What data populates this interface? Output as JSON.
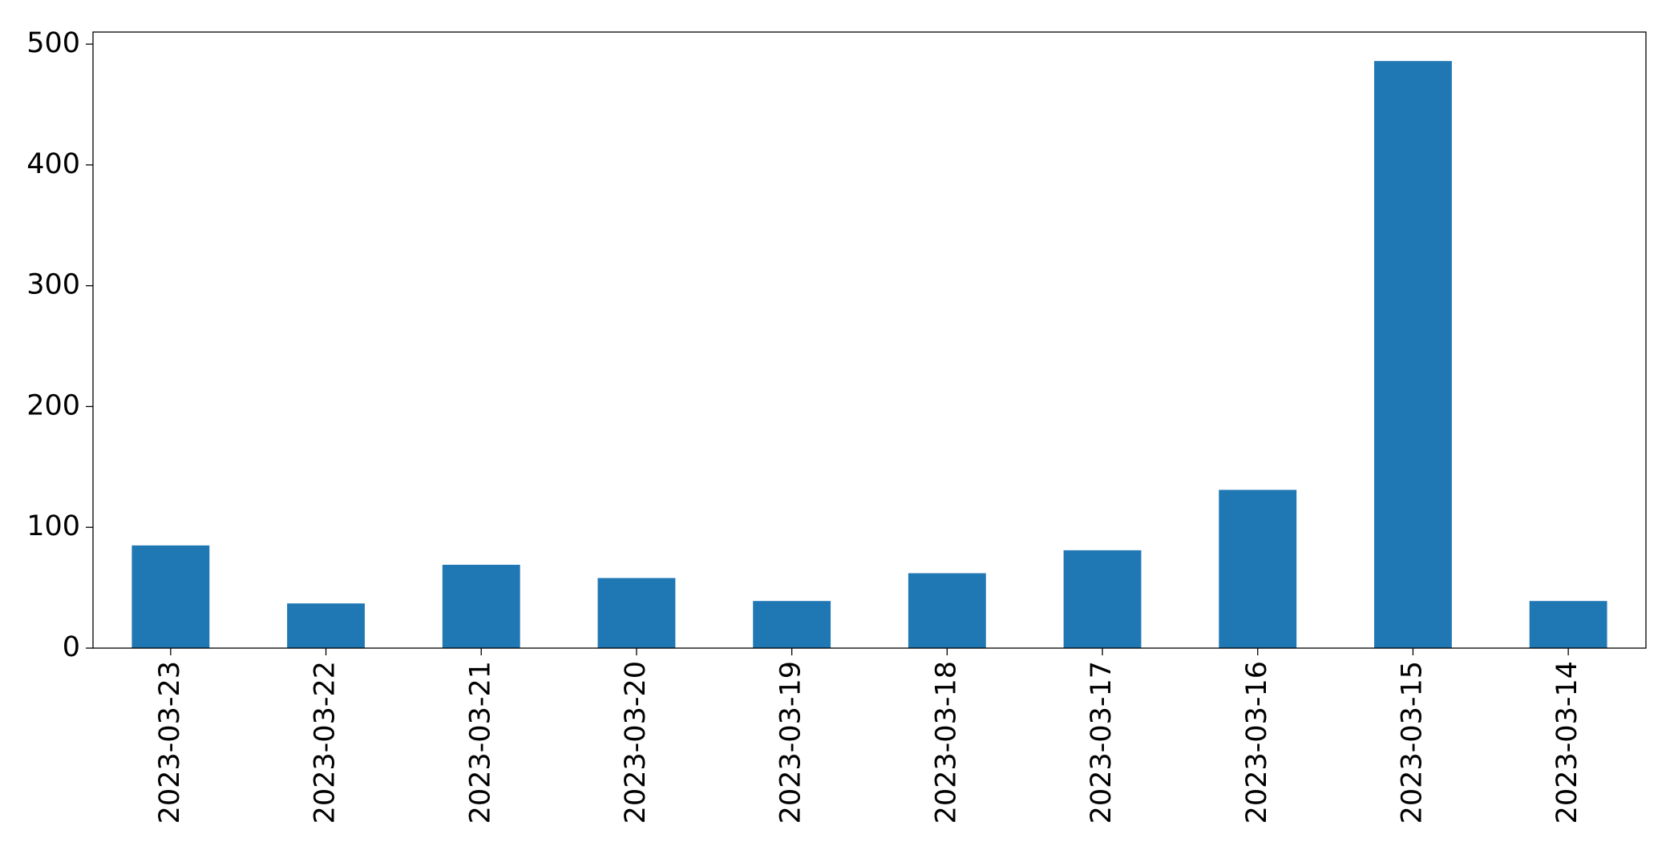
{
  "chart_data": {
    "type": "bar",
    "categories": [
      "2023-03-23",
      "2023-03-22",
      "2023-03-21",
      "2023-03-20",
      "2023-03-19",
      "2023-03-18",
      "2023-03-17",
      "2023-03-16",
      "2023-03-15",
      "2023-03-14"
    ],
    "values": [
      85,
      37,
      69,
      58,
      39,
      62,
      81,
      131,
      486,
      39
    ],
    "color": "#1f77b4",
    "ylim": [
      0,
      510
    ],
    "yticks": [
      0,
      100,
      200,
      300,
      400,
      500
    ],
    "grid": false
  }
}
